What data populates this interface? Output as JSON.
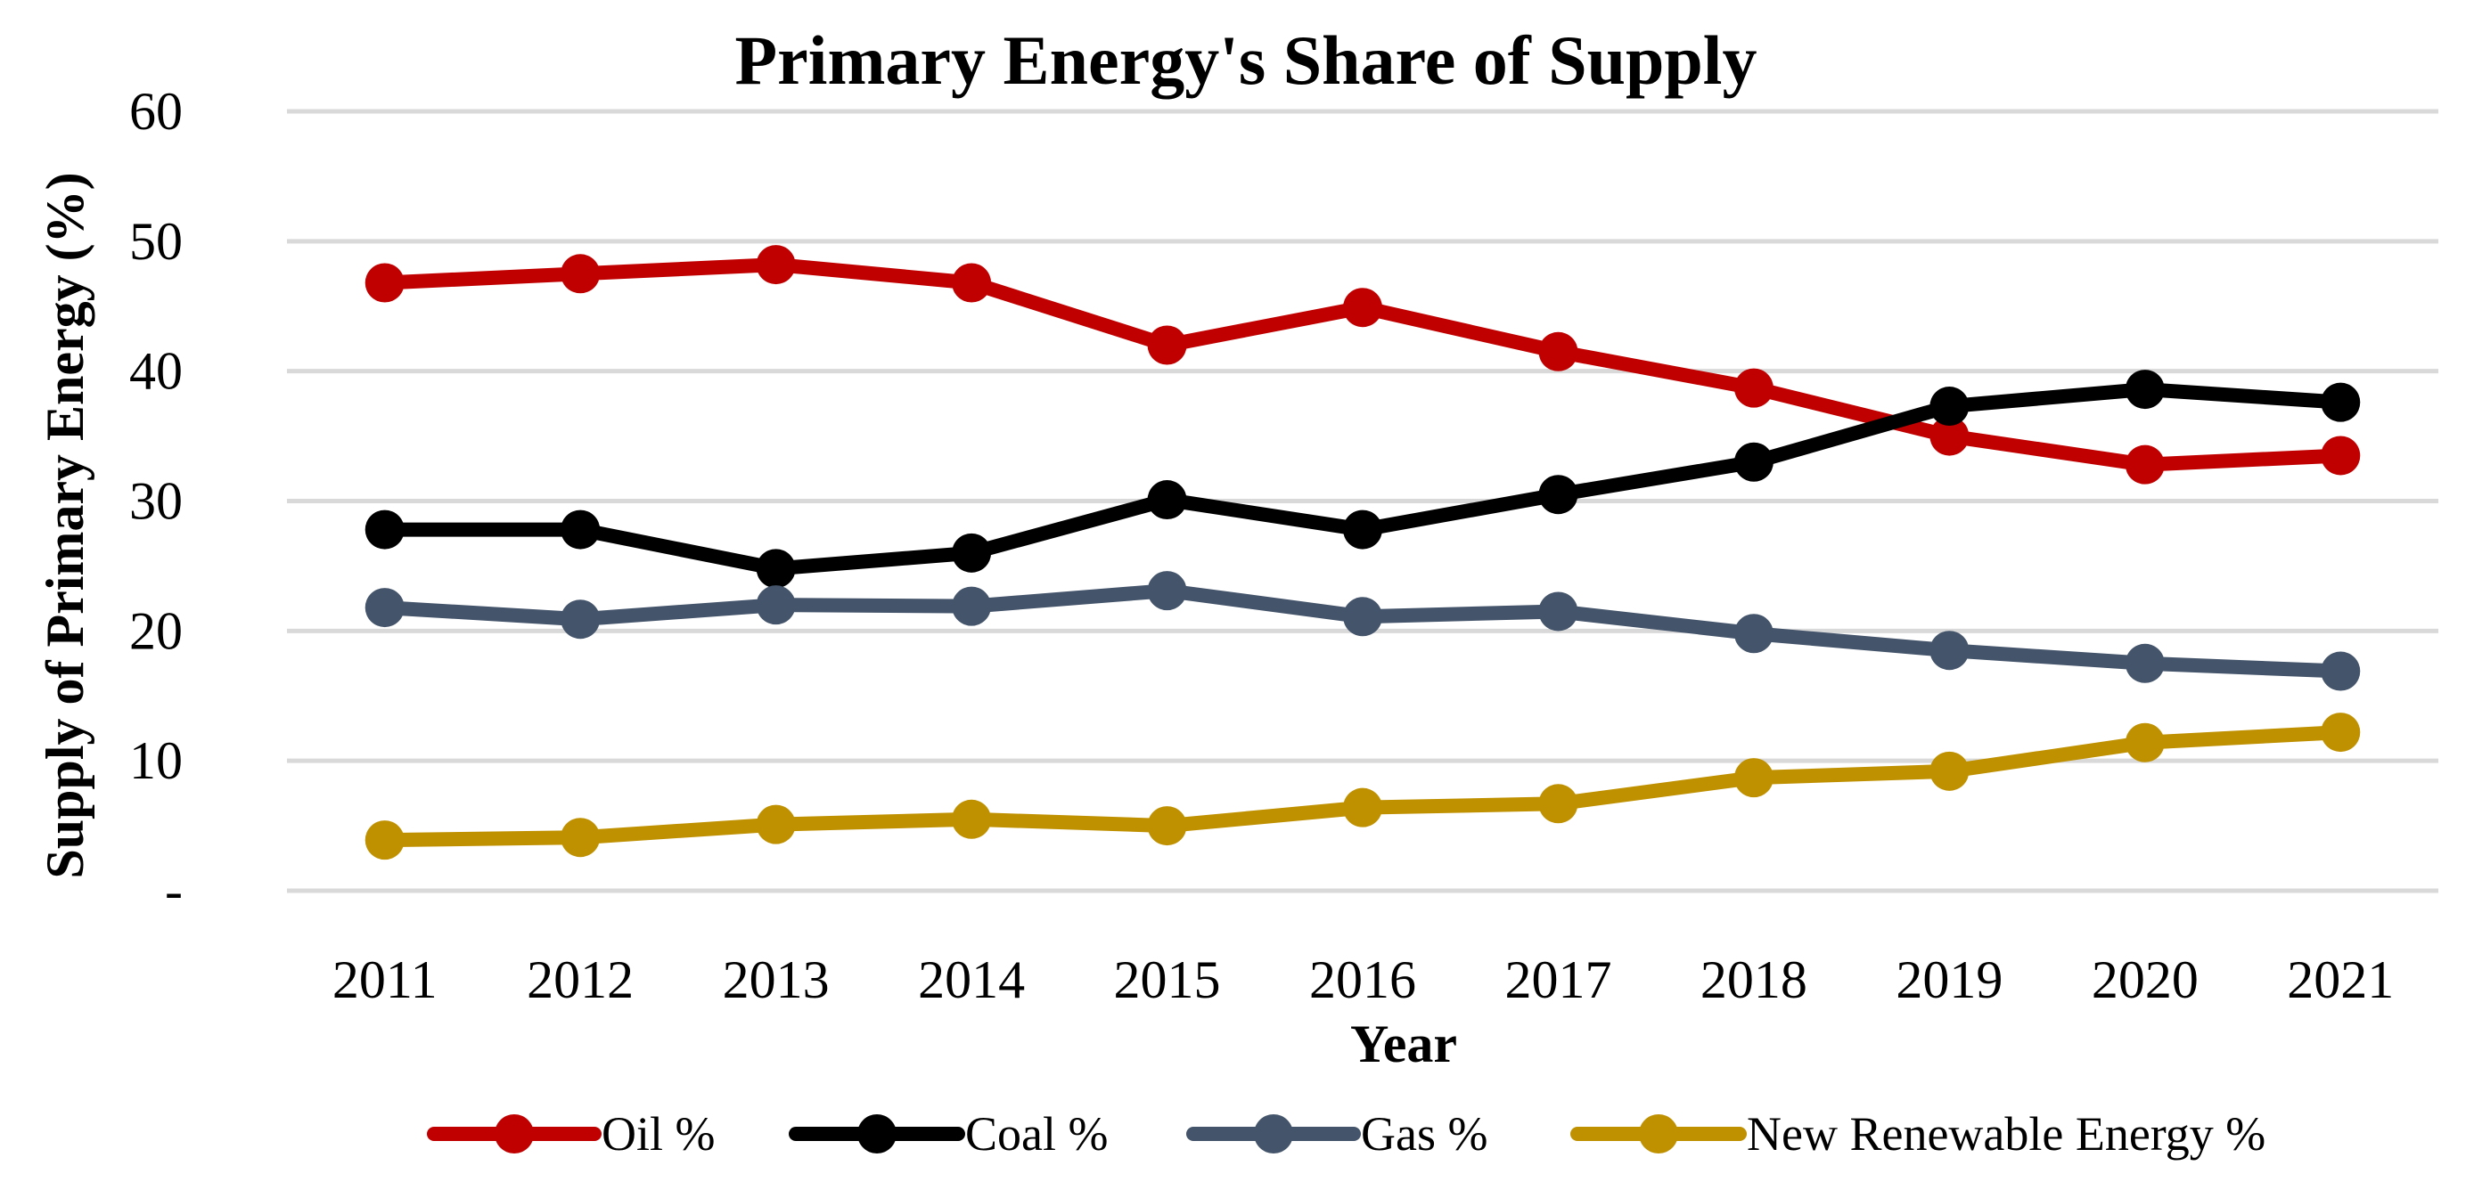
{
  "chart_data": {
    "type": "line",
    "title": "Primary Energy's Share of Supply",
    "xlabel": "Year",
    "ylabel": "Supply of Primary Energy (%)",
    "ylim": [
      0,
      60
    ],
    "grid": true,
    "legend_position": "bottom",
    "y_ticks": [
      {
        "value": 0,
        "label": "-"
      },
      {
        "value": 10,
        "label": "10"
      },
      {
        "value": 20,
        "label": "20"
      },
      {
        "value": 30,
        "label": "30"
      },
      {
        "value": 40,
        "label": "40"
      },
      {
        "value": 50,
        "label": "50"
      },
      {
        "value": 60,
        "label": "60"
      }
    ],
    "categories": [
      "2011",
      "2012",
      "2013",
      "2014",
      "2015",
      "2016",
      "2017",
      "2018",
      "2019",
      "2020",
      "2021"
    ],
    "series": [
      {
        "name": "Oil %",
        "color": "#c00000",
        "values": [
          46.8,
          47.5,
          48.2,
          46.8,
          42.0,
          44.9,
          41.5,
          38.7,
          35.0,
          32.8,
          33.5
        ]
      },
      {
        "name": "Coal %",
        "color": "#000000",
        "values": [
          27.8,
          27.8,
          24.8,
          26.0,
          30.1,
          27.8,
          30.5,
          33.0,
          37.3,
          38.6,
          37.6
        ]
      },
      {
        "name": "Gas %",
        "color": "#44546a",
        "values": [
          21.8,
          20.9,
          22.0,
          21.9,
          23.1,
          21.1,
          21.5,
          19.8,
          18.5,
          17.5,
          16.9
        ]
      },
      {
        "name": "New Renewable Energy %",
        "color": "#bf9000",
        "values": [
          3.9,
          4.1,
          5.1,
          5.5,
          5.0,
          6.4,
          6.7,
          8.7,
          9.2,
          11.4,
          12.2
        ]
      }
    ]
  }
}
